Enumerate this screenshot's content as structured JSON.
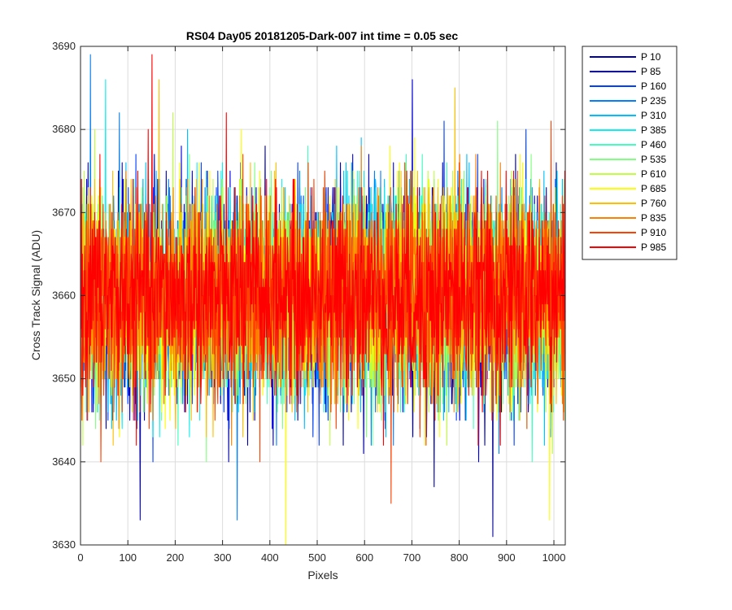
{
  "chart_data": {
    "type": "line",
    "title": "RS04 Day05 20181205-Dark-007 int time = 0.05 sec",
    "xlabel": "Pixels",
    "ylabel": "Cross Track Signal (ADU)",
    "xlim": [
      0,
      1024
    ],
    "ylim": [
      3630,
      3690
    ],
    "xticks": [
      0,
      100,
      200,
      300,
      400,
      500,
      600,
      700,
      800,
      900,
      1000
    ],
    "yticks": [
      3630,
      3640,
      3650,
      3660,
      3670,
      3680,
      3690
    ],
    "xtick_labels": [
      "0",
      "100",
      "200",
      "300",
      "400",
      "500",
      "600",
      "700",
      "800",
      "900",
      "1000"
    ],
    "ytick_labels": [
      "3630",
      "3640",
      "3650",
      "3660",
      "3670",
      "3680",
      "3690"
    ],
    "grid": true,
    "legend_position": "outside-top-right",
    "n_points": 1024,
    "mean": 3660,
    "std": 6,
    "series": [
      {
        "name": "P 10",
        "color": "#0000AA"
      },
      {
        "name": "P 85",
        "color": "#0000E0"
      },
      {
        "name": "P 160",
        "color": "#0040FF"
      },
      {
        "name": "P 235",
        "color": "#0080FF"
      },
      {
        "name": "P 310",
        "color": "#00BFFF"
      },
      {
        "name": "P 385",
        "color": "#10EFEF"
      },
      {
        "name": "P 460",
        "color": "#40FFBF"
      },
      {
        "name": "P 535",
        "color": "#80FF80"
      },
      {
        "name": "P 610",
        "color": "#BFFF40"
      },
      {
        "name": "P 685",
        "color": "#FFFF00"
      },
      {
        "name": "P 760",
        "color": "#FFBF00"
      },
      {
        "name": "P 835",
        "color": "#FF8000"
      },
      {
        "name": "P 910",
        "color": "#FF4000"
      },
      {
        "name": "P 985",
        "color": "#FF0000"
      }
    ],
    "extremes": [
      {
        "series": "P 235",
        "x": 20,
        "y": 3689
      },
      {
        "series": "P 985",
        "x": 150,
        "y": 3689
      },
      {
        "series": "P 85",
        "x": 125,
        "y": 3633
      },
      {
        "series": "P 685",
        "x": 433,
        "y": 3630
      },
      {
        "series": "P 85",
        "x": 870,
        "y": 3631
      },
      {
        "series": "P 235",
        "x": 330,
        "y": 3633
      },
      {
        "series": "P 685",
        "x": 990,
        "y": 3633
      },
      {
        "series": "P 910",
        "x": 655,
        "y": 3635
      },
      {
        "series": "P 85",
        "x": 700,
        "y": 3686
      },
      {
        "series": "P 760",
        "x": 790,
        "y": 3685
      }
    ]
  }
}
